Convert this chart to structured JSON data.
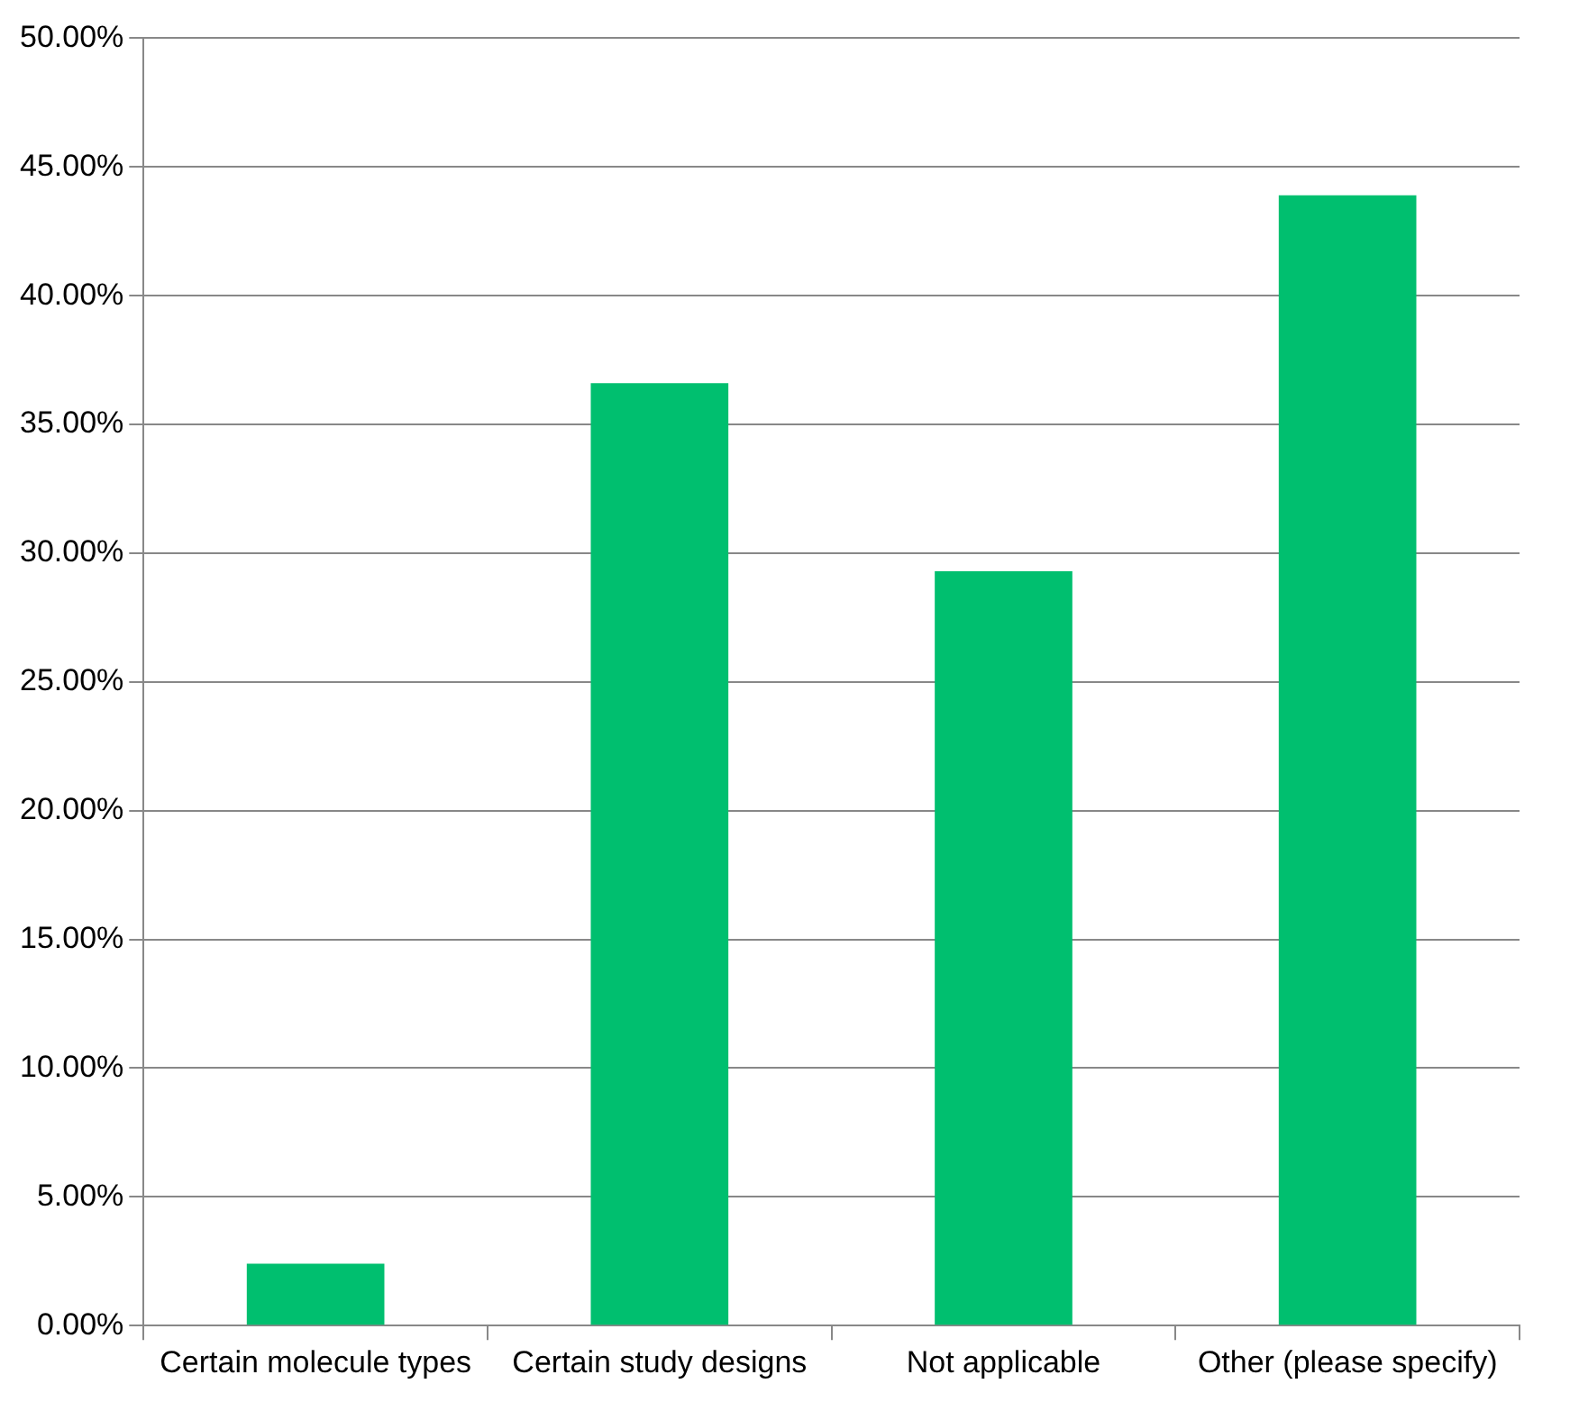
{
  "chart_data": {
    "type": "bar",
    "categories": [
      "Certain molecule types",
      "Certain study designs",
      "Not applicable",
      "Other (please specify)"
    ],
    "values": [
      2.4,
      36.6,
      29.3,
      43.9
    ],
    "color": "#00bf6f",
    "ylim": [
      0,
      50
    ],
    "yticks": [
      {
        "value": 0,
        "label": "0.00%"
      },
      {
        "value": 5,
        "label": "5.00%"
      },
      {
        "value": 10,
        "label": "10.00%"
      },
      {
        "value": 15,
        "label": "15.00%"
      },
      {
        "value": 20,
        "label": "20.00%"
      },
      {
        "value": 25,
        "label": "25.00%"
      },
      {
        "value": 30,
        "label": "30.00%"
      },
      {
        "value": 35,
        "label": "35.00%"
      },
      {
        "value": 40,
        "label": "40.00%"
      },
      {
        "value": 45,
        "label": "45.00%"
      },
      {
        "value": 50,
        "label": "50.00%"
      }
    ],
    "grid": "y",
    "legend": false
  }
}
